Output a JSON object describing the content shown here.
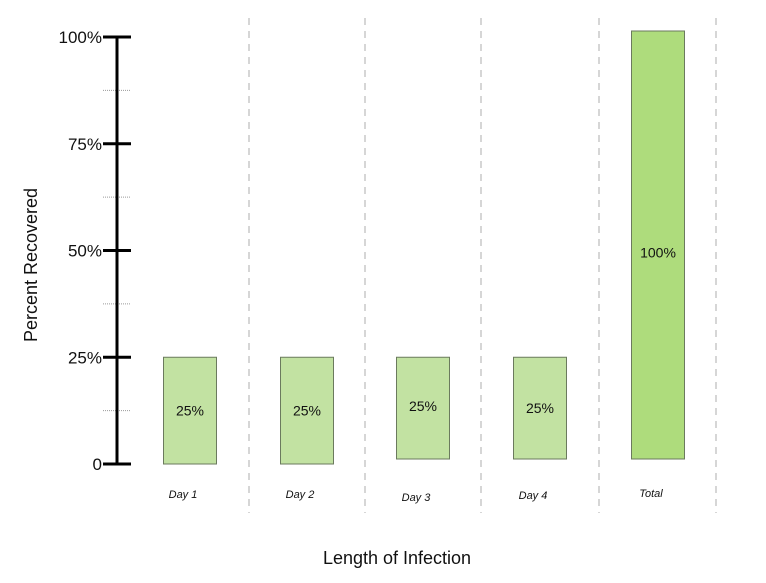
{
  "chart_data": {
    "type": "bar",
    "xlabel": "Length of Infection",
    "ylabel": "Percent Recovered",
    "ylim": [
      0,
      100
    ],
    "y_ticks": [
      {
        "value": 0,
        "label": "0"
      },
      {
        "value": 25,
        "label": "25%"
      },
      {
        "value": 50,
        "label": "50%"
      },
      {
        "value": 75,
        "label": "75%"
      },
      {
        "value": 100,
        "label": "100%"
      }
    ],
    "categories": [
      "Day 1",
      "Day 2",
      "Day 3",
      "Day 4",
      "Total"
    ],
    "values": [
      25,
      25,
      25,
      25,
      100
    ],
    "data_labels": [
      "25%",
      "25%",
      "25%",
      "25%",
      "100%"
    ],
    "bar_color": "#c2e2a2",
    "total_bar_color": "#aedc7c",
    "bar_border_color": "#6b7a5e",
    "grid": "vertical dashed separators"
  }
}
